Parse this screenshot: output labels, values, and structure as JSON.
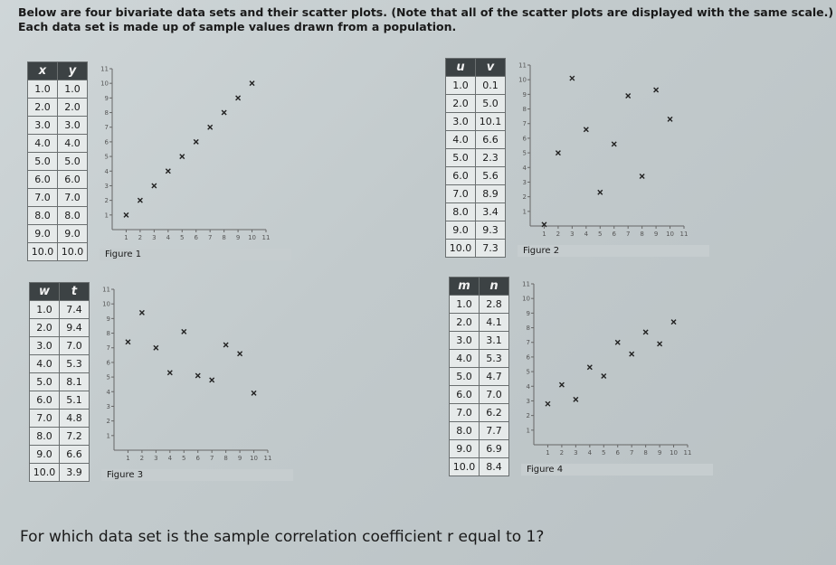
{
  "intro": [
    "Below are four bivariate data sets and their scatter plots. (Note that all of the scatter plots are displayed with the same scale.)",
    "Each data set is made up of sample values drawn from a population."
  ],
  "axis_lim": [
    0,
    11
  ],
  "axis_ticks": [
    1,
    2,
    3,
    4,
    5,
    6,
    7,
    8,
    9,
    10,
    11
  ],
  "data_sets": [
    {
      "headers": [
        "x",
        "y"
      ],
      "figure": "Figure 1",
      "rows": [
        [
          "1.0",
          "1.0"
        ],
        [
          "2.0",
          "2.0"
        ],
        [
          "3.0",
          "3.0"
        ],
        [
          "4.0",
          "4.0"
        ],
        [
          "5.0",
          "5.0"
        ],
        [
          "6.0",
          "6.0"
        ],
        [
          "7.0",
          "7.0"
        ],
        [
          "8.0",
          "8.0"
        ],
        [
          "9.0",
          "9.0"
        ],
        [
          "10.0",
          "10.0"
        ]
      ]
    },
    {
      "headers": [
        "u",
        "v"
      ],
      "figure": "Figure 2",
      "rows": [
        [
          "1.0",
          "0.1"
        ],
        [
          "2.0",
          "5.0"
        ],
        [
          "3.0",
          "10.1"
        ],
        [
          "4.0",
          "6.6"
        ],
        [
          "5.0",
          "2.3"
        ],
        [
          "6.0",
          "5.6"
        ],
        [
          "7.0",
          "8.9"
        ],
        [
          "8.0",
          "3.4"
        ],
        [
          "9.0",
          "9.3"
        ],
        [
          "10.0",
          "7.3"
        ]
      ]
    },
    {
      "headers": [
        "w",
        "t"
      ],
      "figure": "Figure 3",
      "rows": [
        [
          "1.0",
          "7.4"
        ],
        [
          "2.0",
          "9.4"
        ],
        [
          "3.0",
          "7.0"
        ],
        [
          "4.0",
          "5.3"
        ],
        [
          "5.0",
          "8.1"
        ],
        [
          "6.0",
          "5.1"
        ],
        [
          "7.0",
          "4.8"
        ],
        [
          "8.0",
          "7.2"
        ],
        [
          "9.0",
          "6.6"
        ],
        [
          "10.0",
          "3.9"
        ]
      ]
    },
    {
      "headers": [
        "m",
        "n"
      ],
      "figure": "Figure 4",
      "rows": [
        [
          "1.0",
          "2.8"
        ],
        [
          "2.0",
          "4.1"
        ],
        [
          "3.0",
          "3.1"
        ],
        [
          "4.0",
          "5.3"
        ],
        [
          "5.0",
          "4.7"
        ],
        [
          "6.0",
          "7.0"
        ],
        [
          "7.0",
          "6.2"
        ],
        [
          "8.0",
          "7.7"
        ],
        [
          "9.0",
          "6.9"
        ],
        [
          "10.0",
          "8.4"
        ]
      ]
    }
  ],
  "question": "For which data set is the sample correlation coefficient r equal to 1?"
}
